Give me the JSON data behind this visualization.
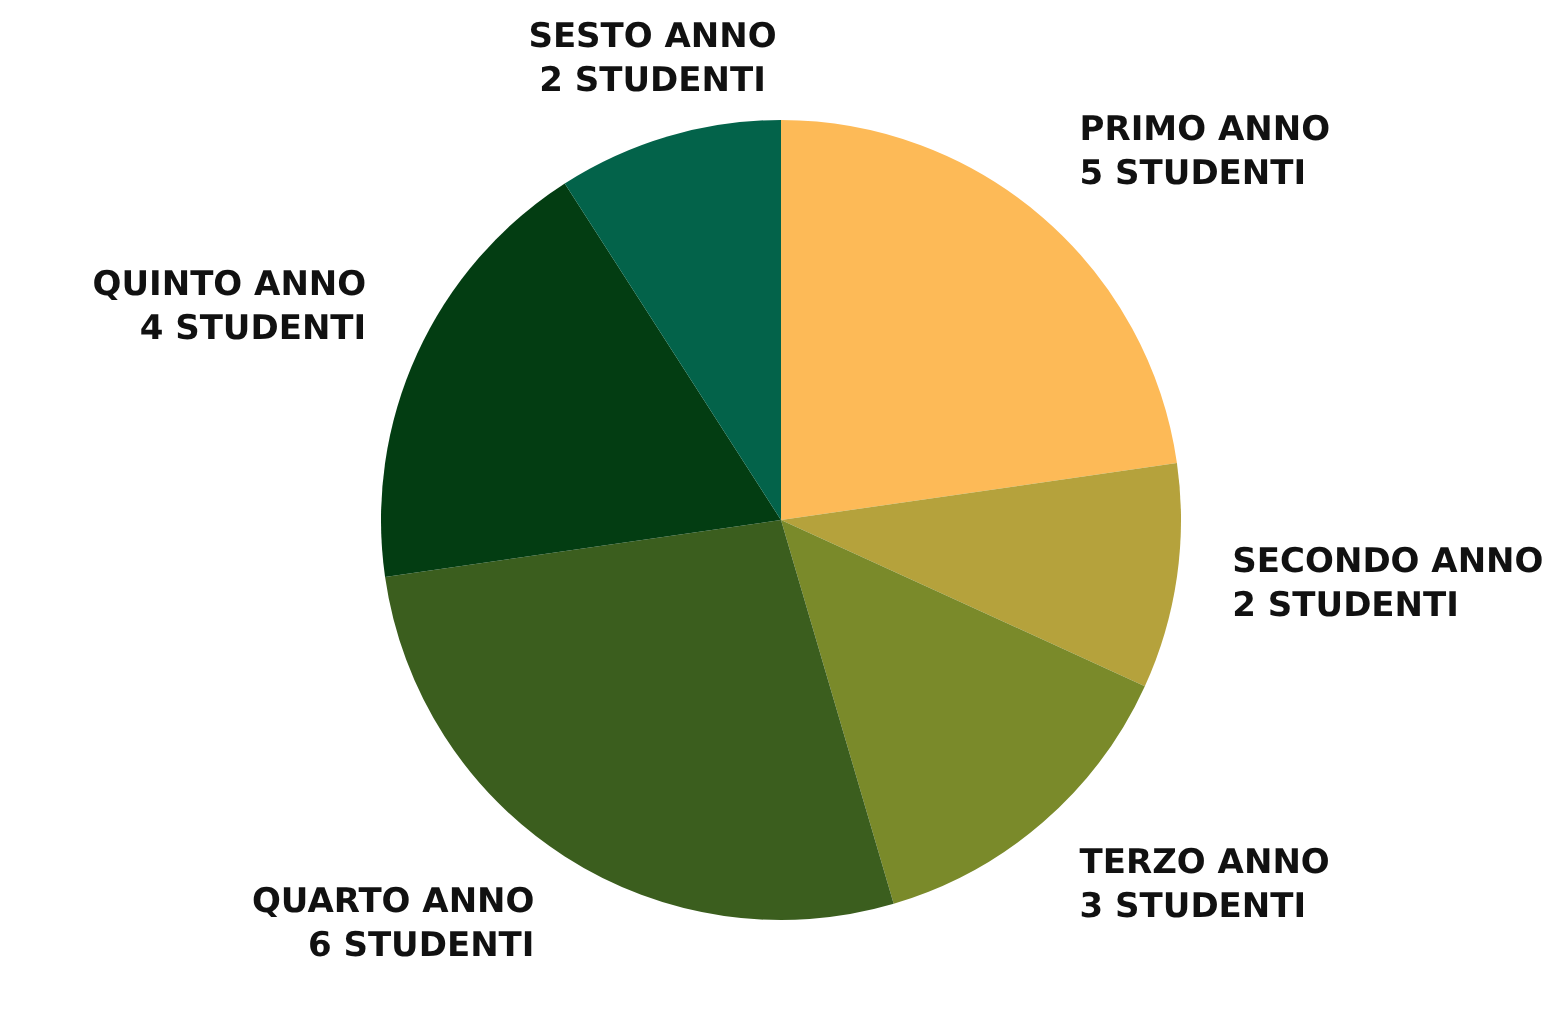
{
  "chart_data": {
    "type": "pie",
    "categories": [
      "PRIMO ANNO",
      "SECONDO ANNO",
      "TERZO ANNO",
      "QUARTO ANNO",
      "QUINTO ANNO",
      "SESTO ANNO"
    ],
    "values": [
      5,
      2,
      3,
      6,
      4,
      2
    ],
    "value_labels": [
      "5 STUDENTI",
      "2 STUDENTI",
      "3 STUDENTI",
      "6 STUDENTI",
      "4 STUDENTI",
      "2 STUDENTI"
    ],
    "colors": [
      "#fdba57",
      "#b5a23c",
      "#7a8a2a",
      "#3b5e1e",
      "#033d12",
      "#03634a"
    ],
    "legend": false
  }
}
